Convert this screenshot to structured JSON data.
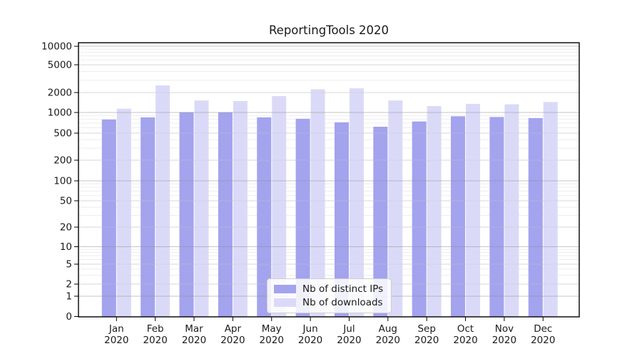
{
  "figure": {
    "title": "ReportingTools 2020"
  },
  "chart_data": {
    "type": "bar",
    "title": "ReportingTools 2020",
    "x_categories": [
      "Jan",
      "Feb",
      "Mar",
      "Apr",
      "May",
      "Jun",
      "Jul",
      "Aug",
      "Sep",
      "Oct",
      "Nov",
      "Dec"
    ],
    "x_year": "2020",
    "series": [
      {
        "name": "Nb of distinct IPs",
        "color": "#a3a3ee",
        "values": [
          790,
          850,
          1010,
          1010,
          850,
          810,
          720,
          620,
          740,
          880,
          860,
          830
        ]
      },
      {
        "name": "Nb of downloads",
        "color": "#dadaf8",
        "values": [
          1140,
          2530,
          1520,
          1490,
          1770,
          2230,
          2300,
          1520,
          1250,
          1350,
          1330,
          1440
        ]
      }
    ],
    "y_axis": {
      "scale": "symlog",
      "ticks": [
        0,
        1,
        2,
        5,
        10,
        20,
        50,
        100,
        200,
        500,
        1000,
        2000,
        5000,
        10000
      ],
      "range": [
        0,
        10000
      ]
    },
    "legend": {
      "position": "lower-center",
      "items": [
        "Nb of distinct IPs",
        "Nb of downloads"
      ]
    },
    "grid": true,
    "text_color": "#1a1a1a"
  }
}
